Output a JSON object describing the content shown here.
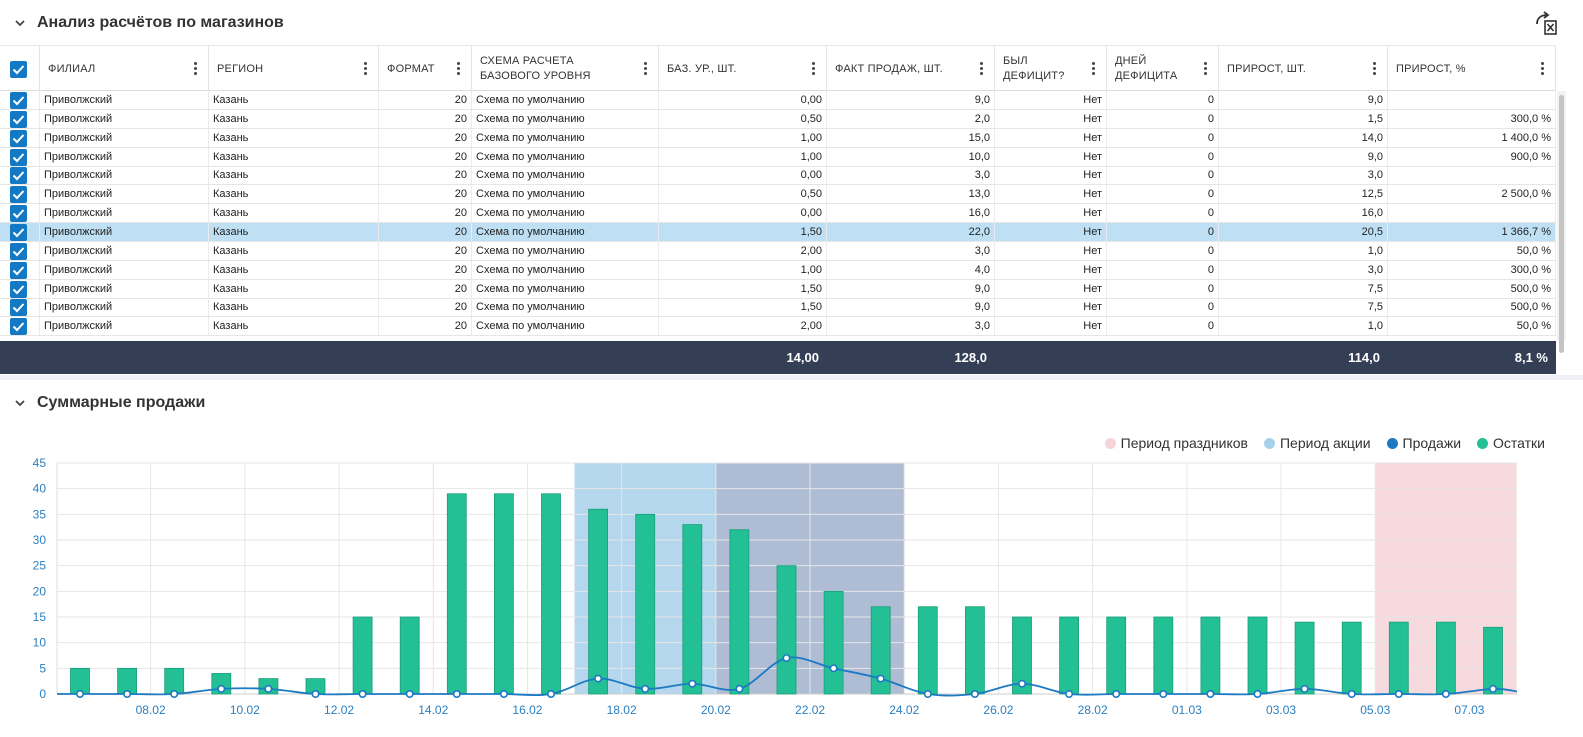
{
  "sections": {
    "analysis_title": "Анализ расчётов по магазинов",
    "sales_title": "Суммарные продажи"
  },
  "columns": [
    {
      "key": "filial",
      "label": "ФИЛИАЛ"
    },
    {
      "key": "region",
      "label": "РЕГИОН"
    },
    {
      "key": "format",
      "label": "ФОРМАТ"
    },
    {
      "key": "scheme",
      "label": "СХЕМА РАСЧЕТА БАЗОВОГО УРОВНЯ"
    },
    {
      "key": "base",
      "label": "БАЗ. УР., ШТ."
    },
    {
      "key": "fact",
      "label": "ФАКТ ПРОДАЖ, ШТ."
    },
    {
      "key": "deficit",
      "label": "БЫЛ ДЕФИЦИТ?"
    },
    {
      "key": "days",
      "label": "ДНЕЙ ДЕФИЦИТА"
    },
    {
      "key": "growth",
      "label": "ПРИРОСТ, ШТ."
    },
    {
      "key": "growth_pct",
      "label": "ПРИРОСТ, %"
    }
  ],
  "rows": [
    {
      "filial": "Приволжский",
      "region": "Казань",
      "format": "20",
      "scheme": "Схема по умолчанию",
      "base": "0,00",
      "fact": "9,0",
      "deficit": "Нет",
      "days": "0",
      "growth": "9,0",
      "growth_pct": "",
      "checked": true,
      "selected": false
    },
    {
      "filial": "Приволжский",
      "region": "Казань",
      "format": "20",
      "scheme": "Схема по умолчанию",
      "base": "0,50",
      "fact": "2,0",
      "deficit": "Нет",
      "days": "0",
      "growth": "1,5",
      "growth_pct": "300,0 %",
      "checked": true,
      "selected": false
    },
    {
      "filial": "Приволжский",
      "region": "Казань",
      "format": "20",
      "scheme": "Схема по умолчанию",
      "base": "1,00",
      "fact": "15,0",
      "deficit": "Нет",
      "days": "0",
      "growth": "14,0",
      "growth_pct": "1 400,0 %",
      "checked": true,
      "selected": false
    },
    {
      "filial": "Приволжский",
      "region": "Казань",
      "format": "20",
      "scheme": "Схема по умолчанию",
      "base": "1,00",
      "fact": "10,0",
      "deficit": "Нет",
      "days": "0",
      "growth": "9,0",
      "growth_pct": "900,0 %",
      "checked": true,
      "selected": false
    },
    {
      "filial": "Приволжский",
      "region": "Казань",
      "format": "20",
      "scheme": "Схема по умолчанию",
      "base": "0,00",
      "fact": "3,0",
      "deficit": "Нет",
      "days": "0",
      "growth": "3,0",
      "growth_pct": "",
      "checked": true,
      "selected": false
    },
    {
      "filial": "Приволжский",
      "region": "Казань",
      "format": "20",
      "scheme": "Схема по умолчанию",
      "base": "0,50",
      "fact": "13,0",
      "deficit": "Нет",
      "days": "0",
      "growth": "12,5",
      "growth_pct": "2 500,0 %",
      "checked": true,
      "selected": false
    },
    {
      "filial": "Приволжский",
      "region": "Казань",
      "format": "20",
      "scheme": "Схема по умолчанию",
      "base": "0,00",
      "fact": "16,0",
      "deficit": "Нет",
      "days": "0",
      "growth": "16,0",
      "growth_pct": "",
      "checked": true,
      "selected": false
    },
    {
      "filial": "Приволжский",
      "region": "Казань",
      "format": "20",
      "scheme": "Схема по умолчанию",
      "base": "1,50",
      "fact": "22,0",
      "deficit": "Нет",
      "days": "0",
      "growth": "20,5",
      "growth_pct": "1 366,7 %",
      "checked": true,
      "selected": true
    },
    {
      "filial": "Приволжский",
      "region": "Казань",
      "format": "20",
      "scheme": "Схема по умолчанию",
      "base": "2,00",
      "fact": "3,0",
      "deficit": "Нет",
      "days": "0",
      "growth": "1,0",
      "growth_pct": "50,0 %",
      "checked": true,
      "selected": false
    },
    {
      "filial": "Приволжский",
      "region": "Казань",
      "format": "20",
      "scheme": "Схема по умолчанию",
      "base": "1,00",
      "fact": "4,0",
      "deficit": "Нет",
      "days": "0",
      "growth": "3,0",
      "growth_pct": "300,0 %",
      "checked": true,
      "selected": false
    },
    {
      "filial": "Приволжский",
      "region": "Казань",
      "format": "20",
      "scheme": "Схема по умолчанию",
      "base": "1,50",
      "fact": "9,0",
      "deficit": "Нет",
      "days": "0",
      "growth": "7,5",
      "growth_pct": "500,0 %",
      "checked": true,
      "selected": false
    },
    {
      "filial": "Приволжский",
      "region": "Казань",
      "format": "20",
      "scheme": "Схема по умолчанию",
      "base": "1,50",
      "fact": "9,0",
      "deficit": "Нет",
      "days": "0",
      "growth": "7,5",
      "growth_pct": "500,0 %",
      "checked": true,
      "selected": false
    },
    {
      "filial": "Приволжский",
      "region": "Казань",
      "format": "20",
      "scheme": "Схема по умолчанию",
      "base": "2,00",
      "fact": "3,0",
      "deficit": "Нет",
      "days": "0",
      "growth": "1,0",
      "growth_pct": "50,0 %",
      "checked": true,
      "selected": false
    }
  ],
  "totals": {
    "base": "14,00",
    "fact": "128,0",
    "growth": "114,0",
    "growth_pct": "8,1 %"
  },
  "icons": {
    "collapse": "chevron-down-icon",
    "export": "excel-export-icon",
    "column_menu": "more-vertical-icon",
    "checkbox": "checkbox-checked-icon"
  },
  "colors": {
    "accent": "#1479c4",
    "totals_bg": "#343f56",
    "selected_row": "#bfe0f4",
    "bars": "#23bf95",
    "sales_line": "#1c7ac2",
    "holiday": "#f6d3d7",
    "promo": "#a7d0ea",
    "promo_dark": "#a1b1cc"
  },
  "chart_data": {
    "type": "bar",
    "ylim": [
      0,
      45
    ],
    "yticks": [
      0,
      5,
      10,
      15,
      20,
      25,
      30,
      35,
      40,
      45
    ],
    "categories": [
      "07.02",
      "08.02",
      "09.02",
      "10.02",
      "11.02",
      "12.02",
      "13.02",
      "14.02",
      "15.02",
      "16.02",
      "17.02",
      "18.02",
      "19.02",
      "20.02",
      "21.02",
      "22.02",
      "23.02",
      "24.02",
      "25.02",
      "26.02",
      "27.02",
      "28.02",
      "29.02",
      "01.03",
      "02.03",
      "03.03",
      "04.03",
      "05.03",
      "06.03",
      "07.03",
      "08.03"
    ],
    "x_tick_labels": [
      "08.02",
      "10.02",
      "12.02",
      "14.02",
      "16.02",
      "18.02",
      "20.02",
      "22.02",
      "24.02",
      "26.02",
      "28.02",
      "01.03",
      "03.03",
      "05.03",
      "07.03"
    ],
    "legend_position": "top-right",
    "grid": true,
    "legend": [
      {
        "name": "Период праздников",
        "color": "#f6d3d7"
      },
      {
        "name": "Период акции",
        "color": "#a7d0ea"
      },
      {
        "name": "Продажи",
        "color": "#1c7ac2"
      },
      {
        "name": "Остатки",
        "color": "#23bf95"
      }
    ],
    "series": [
      {
        "name": "Остатки",
        "type": "bar",
        "values": [
          5,
          5,
          5,
          4,
          3,
          3,
          15,
          15,
          39,
          39,
          39,
          36,
          35,
          33,
          32,
          25,
          20,
          17,
          17,
          17,
          15,
          15,
          15,
          15,
          15,
          15,
          14,
          14,
          14,
          14,
          13
        ]
      },
      {
        "name": "Продажи",
        "type": "line",
        "values": [
          0,
          0,
          0,
          1,
          1,
          0,
          0,
          0,
          0,
          0,
          0,
          3,
          1,
          2,
          1,
          7,
          5,
          3,
          0,
          0,
          2,
          0,
          0,
          0,
          0,
          0,
          1,
          0,
          0,
          0,
          1
        ]
      }
    ],
    "bands": [
      {
        "name": "Период акции",
        "from": "18.02",
        "to": "20.02",
        "color": "#a7d0ea"
      },
      {
        "name": "Период акции",
        "from": "21.02",
        "to": "24.02",
        "color": "#a1b1cc"
      },
      {
        "name": "Период праздников",
        "from": "06.03",
        "to": "08.03",
        "color": "#f6d3d7"
      }
    ]
  }
}
